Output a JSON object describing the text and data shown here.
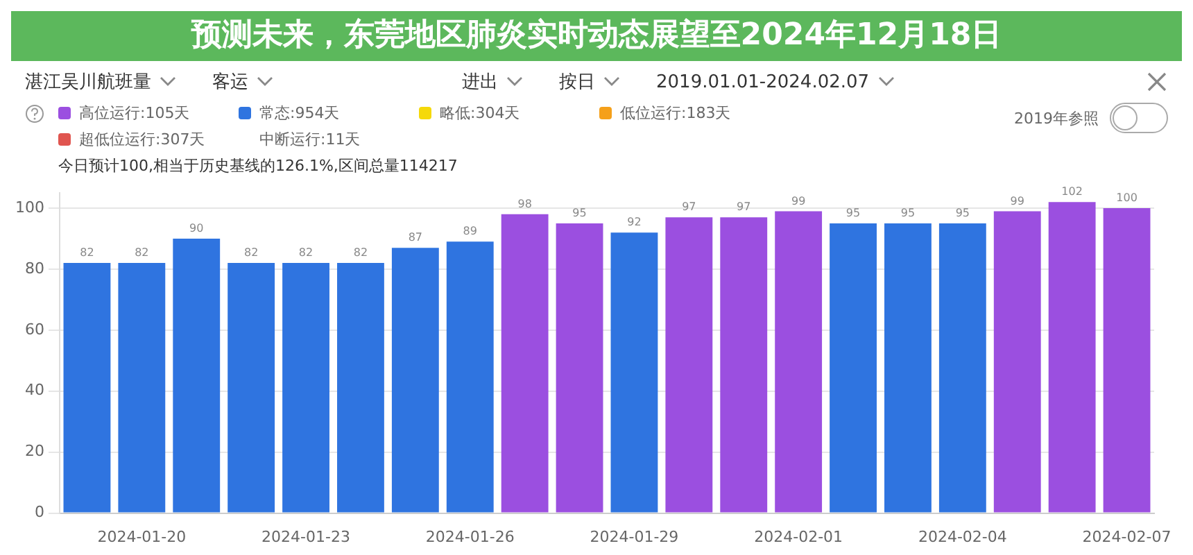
{
  "chart_data": {
    "type": "bar",
    "title": "预测未来，东莞地区肺炎实时动态展望至2024年12月18日",
    "annotations": [
      "湛江吴川航班量",
      "客运",
      "进出",
      "按日",
      "2019.01.01-2024.02.07",
      "中断运行:11天",
      "今日预计100,相当于历史基线的126.1%,区间总量114217",
      "2019年参照"
    ],
    "categories": [
      null,
      "2024-01-20",
      null,
      null,
      "2024-01-23",
      null,
      null,
      "2024-01-26",
      null,
      null,
      "2024-01-29",
      null,
      null,
      "2024-02-01",
      null,
      null,
      "2024-02-04",
      null,
      null,
      "2024-02-07"
    ],
    "series": [
      {
        "name": "高位运行:105天",
        "color": "#9b4fe0",
        "values": [
          null,
          null,
          null,
          null,
          null,
          null,
          null,
          null,
          98,
          95,
          null,
          97,
          97,
          99,
          null,
          null,
          null,
          99,
          102,
          100
        ]
      },
      {
        "name": "常态:954天",
        "color": "#2f74e0",
        "values": [
          82,
          82,
          90,
          82,
          82,
          82,
          87,
          89,
          null,
          null,
          92,
          null,
          null,
          null,
          95,
          95,
          95,
          null,
          null,
          null
        ]
      },
      {
        "name": "略低:304天",
        "color": "#f5d90a",
        "values": [
          null,
          null,
          null,
          null,
          null,
          null,
          null,
          null,
          null,
          null,
          null,
          null,
          null,
          null,
          null,
          null,
          null,
          null,
          null,
          null
        ]
      },
      {
        "name": "低位运行:183天",
        "color": "#f5a01a",
        "values": [
          null,
          null,
          null,
          null,
          null,
          null,
          null,
          null,
          null,
          null,
          null,
          null,
          null,
          null,
          null,
          null,
          null,
          null,
          null,
          null
        ]
      },
      {
        "name": "超低位运行:307天",
        "color": "#e0554f",
        "values": [
          null,
          null,
          null,
          null,
          null,
          null,
          null,
          null,
          null,
          null,
          null,
          null,
          null,
          null,
          null,
          null,
          null,
          null,
          null,
          null
        ]
      }
    ],
    "stacked": true,
    "data_labels": true,
    "ylim": [
      0,
      105
    ],
    "yticks": [
      0,
      20,
      40,
      60,
      80,
      100
    ],
    "grid": "y",
    "legend": "top left"
  }
}
